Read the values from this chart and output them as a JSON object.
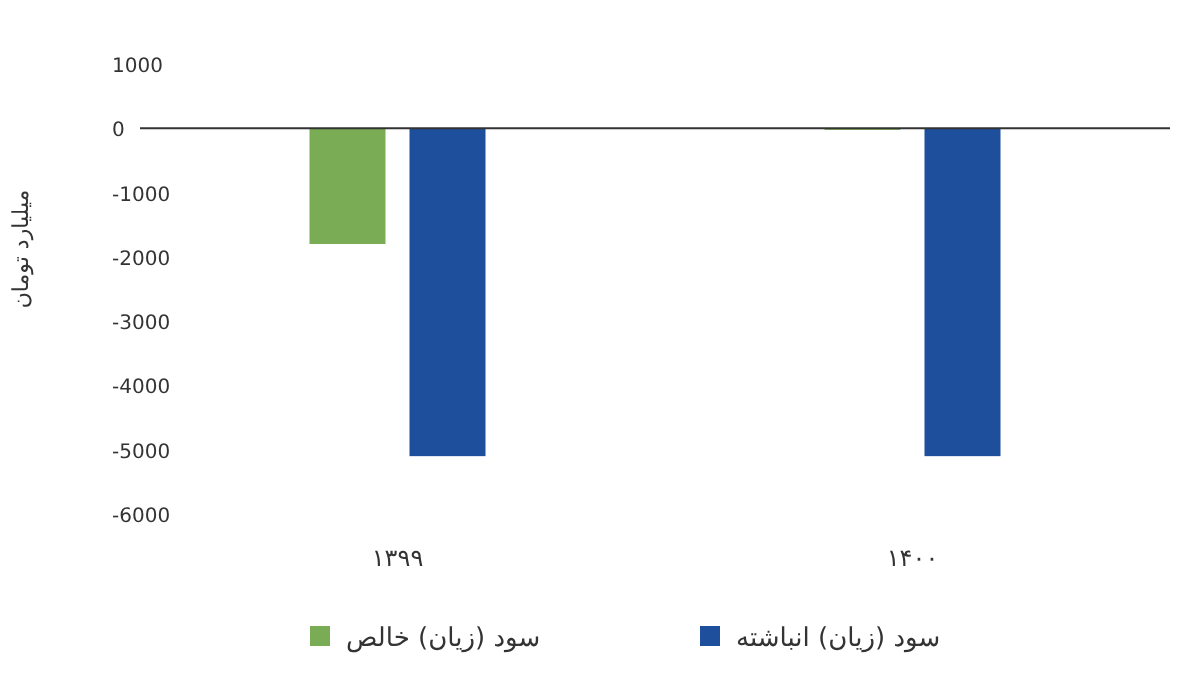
{
  "chart_data": {
    "type": "bar",
    "ylabel": "میلیارد تومان",
    "categories": [
      "۱۳۹۹",
      "۱۴۰۰"
    ],
    "series": [
      {
        "name": "سود (زیان) خالص",
        "color": "#7aac55",
        "values": [
          -1800,
          0
        ]
      },
      {
        "name": "سود (زیان) انباشته",
        "color": "#1d4f9c",
        "values": [
          -5100,
          -5100
        ]
      }
    ],
    "ylim": [
      -6000,
      1000
    ],
    "yticks": [
      1000,
      0,
      -1000,
      -2000,
      -3000,
      -4000,
      -5000,
      -6000
    ],
    "legend": "bottom"
  }
}
